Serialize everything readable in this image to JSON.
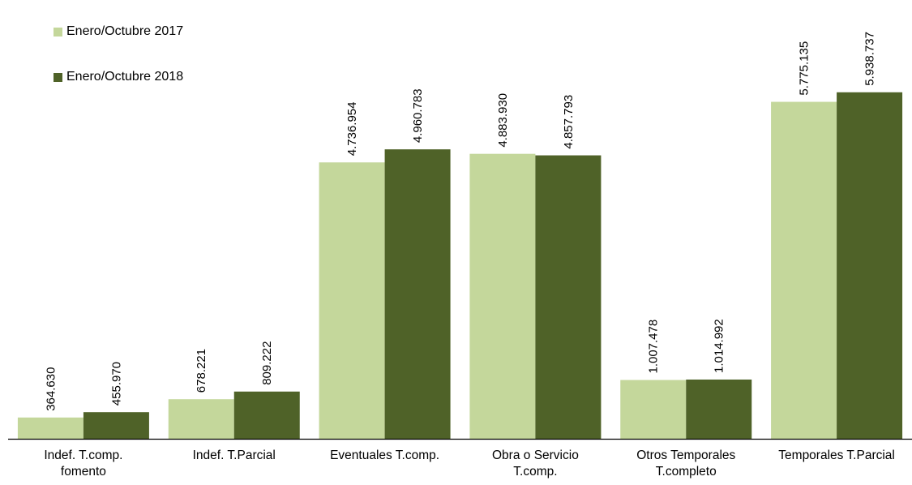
{
  "chart_data": {
    "type": "bar",
    "categories": [
      [
        "Indef. T.comp.",
        "fomento"
      ],
      [
        "Indef. T.Parcial"
      ],
      [
        "Eventuales T.comp."
      ],
      [
        "Obra o Servicio",
        "T.comp."
      ],
      [
        "Otros Temporales",
        "T.completo"
      ],
      [
        "Temporales T.Parcial"
      ]
    ],
    "series": [
      {
        "name": "Enero/Octubre 2017",
        "color": "#c4d79b",
        "values": [
          364630,
          678221,
          4736954,
          4883930,
          1007478,
          5775135
        ],
        "labels": [
          "364.630",
          "678.221",
          "4.736.954",
          "4.883.930",
          "1.007.478",
          "5.775.135"
        ]
      },
      {
        "name": "Enero/Octubre 2018",
        "color": "#4f6228",
        "values": [
          455970,
          809222,
          4960783,
          4857793,
          1014992,
          5938737
        ],
        "labels": [
          "455.970",
          "809.222",
          "4.960.783",
          "4.857.793",
          "1.014.992",
          "5.938.737"
        ]
      }
    ],
    "ylim": [
      0,
      6200000
    ],
    "grid": false,
    "y_axis_visible": false,
    "legend_position": "top-left"
  }
}
